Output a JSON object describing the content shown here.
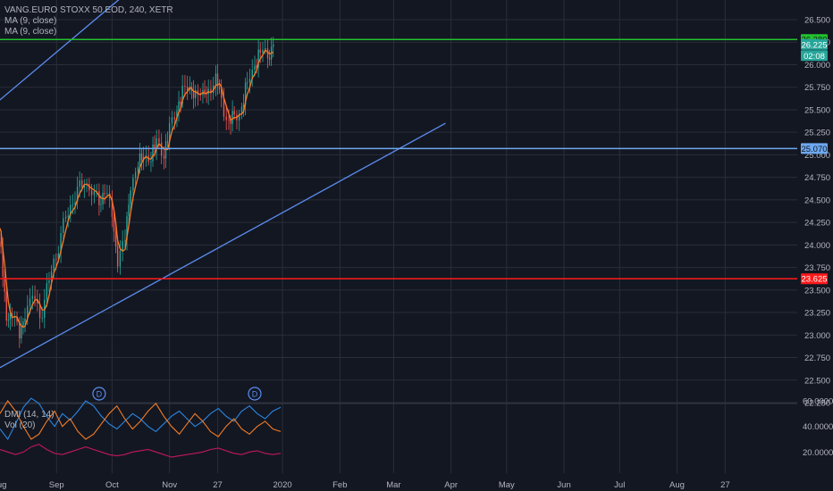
{
  "header": {
    "symbol_line": "VANG.EURO STOXX 50 EOD, 240, XETR",
    "indicator_1": "MA (9, close)",
    "indicator_2": "MA (9, close)"
  },
  "sub_pane": {
    "indicator_1": "DMI (14, 14)",
    "indicator_2": "Vol (20)"
  },
  "colors": {
    "background": "#131722",
    "grid": "#2a2e39",
    "up": "#26a69a",
    "down": "#ef5350",
    "ma": "#f57c25",
    "trendline": "#5b8def",
    "support": "#ff1a1a",
    "resistance": "#23c22e",
    "horizontal_blue": "#6ea8f0",
    "dmi_plus": "#2b86e0",
    "dmi_minus": "#f57c25",
    "adx": "#c2185b"
  },
  "chart_data": [
    {
      "type": "candlestick",
      "x_tick_labels": [
        "Aug",
        "Sep",
        "Oct",
        "Nov",
        "27",
        "2020",
        "Feb",
        "Mar",
        "Apr",
        "May",
        "Jun",
        "Jul",
        "Aug",
        "27"
      ],
      "y_tick_labels": [
        "26.500",
        "26.250",
        "26.000",
        "25.750",
        "25.500",
        "25.250",
        "25.000",
        "24.750",
        "24.500",
        "24.250",
        "24.000",
        "23.750",
        "23.500",
        "23.250",
        "23.000",
        "22.750",
        "22.500",
        "22.250"
      ],
      "ylim": [
        22.25,
        26.5
      ],
      "price_markers": [
        {
          "label": "26.280",
          "value": 26.28,
          "role": "resistance-line"
        },
        {
          "label": "26.225",
          "value": 26.225,
          "role": "last-price"
        },
        {
          "label": "02:08",
          "value": 26.14,
          "role": "countdown"
        },
        {
          "label": "25.070",
          "value": 25.07,
          "role": "horizontal-line"
        },
        {
          "label": "23.625",
          "value": 23.625,
          "role": "support-line"
        }
      ],
      "close_path": [
        {
          "date": "2019-07-29",
          "close": 24.45
        },
        {
          "date": "2019-08-02",
          "close": 23.9
        },
        {
          "date": "2019-08-05",
          "close": 23.15
        },
        {
          "date": "2019-08-08",
          "close": 23.3
        },
        {
          "date": "2019-08-12",
          "close": 22.95
        },
        {
          "date": "2019-08-15",
          "close": 23.25
        },
        {
          "date": "2019-08-19",
          "close": 23.45
        },
        {
          "date": "2019-08-23",
          "close": 23.2
        },
        {
          "date": "2019-08-28",
          "close": 23.6
        },
        {
          "date": "2019-09-02",
          "close": 24.0
        },
        {
          "date": "2019-09-06",
          "close": 24.3
        },
        {
          "date": "2019-09-11",
          "close": 24.55
        },
        {
          "date": "2019-09-16",
          "close": 24.7
        },
        {
          "date": "2019-09-20",
          "close": 24.6
        },
        {
          "date": "2019-09-24",
          "close": 24.45
        },
        {
          "date": "2019-09-27",
          "close": 24.65
        },
        {
          "date": "2019-10-01",
          "close": 24.3
        },
        {
          "date": "2019-10-04",
          "close": 23.85
        },
        {
          "date": "2019-10-08",
          "close": 24.05
        },
        {
          "date": "2019-10-11",
          "close": 24.65
        },
        {
          "date": "2019-10-15",
          "close": 24.9
        },
        {
          "date": "2019-10-18",
          "close": 24.95
        },
        {
          "date": "2019-10-22",
          "close": 25.0
        },
        {
          "date": "2019-10-25",
          "close": 25.1
        },
        {
          "date": "2019-10-29",
          "close": 25.05
        },
        {
          "date": "2019-11-01",
          "close": 25.25
        },
        {
          "date": "2019-11-05",
          "close": 25.55
        },
        {
          "date": "2019-11-08",
          "close": 25.7
        },
        {
          "date": "2019-11-12",
          "close": 25.75
        },
        {
          "date": "2019-11-15",
          "close": 25.7
        },
        {
          "date": "2019-11-19",
          "close": 25.65
        },
        {
          "date": "2019-11-22",
          "close": 25.75
        },
        {
          "date": "2019-11-26",
          "close": 25.8
        },
        {
          "date": "2019-11-29",
          "close": 25.65
        },
        {
          "date": "2019-12-03",
          "close": 25.3
        },
        {
          "date": "2019-12-06",
          "close": 25.45
        },
        {
          "date": "2019-12-10",
          "close": 25.5
        },
        {
          "date": "2019-12-13",
          "close": 25.8
        },
        {
          "date": "2019-12-17",
          "close": 26.0
        },
        {
          "date": "2019-12-20",
          "close": 26.15
        },
        {
          "date": "2019-12-24",
          "close": 26.1
        },
        {
          "date": "2019-12-27",
          "close": 26.225
        }
      ],
      "channel_lines": [
        {
          "name": "upper",
          "from": {
            "date": "2019-07-29",
            "value": 25.55
          },
          "to": {
            "date": "2019-11-07",
            "value": 27.3
          }
        },
        {
          "name": "lower",
          "from": {
            "date": "2019-07-29",
            "value": 22.6
          },
          "to": {
            "date": "2020-03-29",
            "value": 25.35
          }
        }
      ],
      "markers": [
        {
          "date": "2019-09-24",
          "label": "D"
        },
        {
          "date": "2019-12-17",
          "label": "D"
        }
      ]
    },
    {
      "type": "line",
      "y_tick_labels": [
        "60.0000",
        "40.0000",
        "20.0000"
      ],
      "ylim": [
        0,
        72
      ],
      "series": [
        {
          "key": "dmi_plus",
          "values": [
            38,
            30,
            42,
            55,
            62,
            58,
            48,
            40,
            50,
            45,
            52,
            60,
            56,
            48,
            42,
            38,
            44,
            50,
            46,
            40,
            36,
            42,
            48,
            52,
            46,
            40,
            44,
            50,
            54,
            48,
            44,
            52,
            56,
            50,
            46,
            52,
            55
          ]
        },
        {
          "key": "dmi_minus",
          "values": [
            50,
            60,
            52,
            40,
            30,
            34,
            44,
            52,
            40,
            46,
            36,
            30,
            34,
            42,
            50,
            56,
            46,
            38,
            44,
            52,
            58,
            48,
            40,
            34,
            42,
            50,
            44,
            36,
            32,
            40,
            46,
            38,
            34,
            40,
            44,
            38,
            36
          ]
        },
        {
          "key": "adx",
          "values": [
            22,
            20,
            18,
            20,
            24,
            26,
            22,
            19,
            18,
            20,
            22,
            24,
            22,
            20,
            18,
            17,
            18,
            20,
            21,
            22,
            20,
            18,
            16,
            17,
            18,
            19,
            20,
            22,
            23,
            21,
            19,
            18,
            20,
            21,
            19,
            18,
            19
          ]
        }
      ]
    }
  ]
}
